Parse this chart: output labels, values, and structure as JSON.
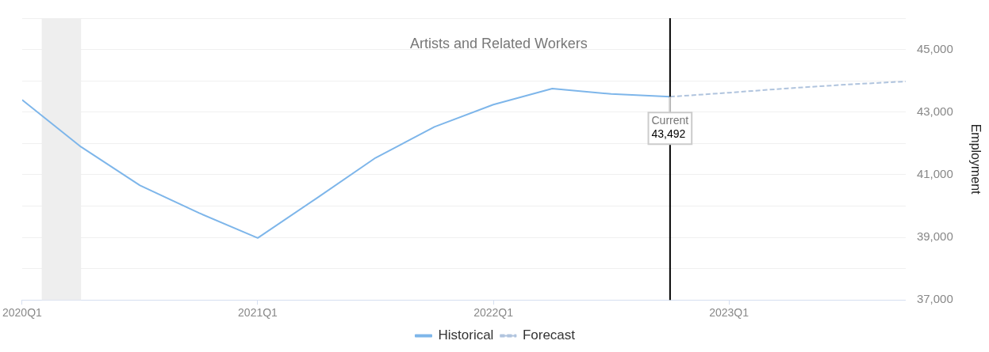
{
  "chart_data": {
    "type": "line",
    "title": "Artists and Related Workers",
    "ylabel": "Employment",
    "x": [
      "2020-01",
      "2020-04",
      "2020-07",
      "2020-10",
      "2021-01",
      "2021-04",
      "2021-07",
      "2021-10",
      "2022-01",
      "2022-04",
      "2022-07",
      "2022-10"
    ],
    "series": [
      {
        "name": "Historical",
        "color": "#7eb6ea",
        "line_style": "solid",
        "values": [
          43390,
          41890,
          40660,
          39780,
          38980,
          40250,
          41540,
          42530,
          43240,
          43750,
          43580,
          43492
        ]
      },
      {
        "name": "Forecast",
        "color": "#b0c4de",
        "line_style": "dashed",
        "x": [
          "2022-10",
          "2023-01",
          "2023-04",
          "2023-07",
          "2023-10"
        ],
        "values": [
          43492,
          43620,
          43760,
          43880,
          43980
        ]
      }
    ],
    "xlim": [
      "2020-01",
      "2023-10"
    ],
    "xticks": [
      {
        "value": "2020-01",
        "label": "2020Q1"
      },
      {
        "value": "2021-01",
        "label": "2021Q1"
      },
      {
        "value": "2022-01",
        "label": "2022Q1"
      },
      {
        "value": "2023-01",
        "label": "2023Q1"
      }
    ],
    "ylim": [
      37000,
      46000
    ],
    "yticks": [
      {
        "value": 37000,
        "label": "37,000"
      },
      {
        "value": 38000,
        "label": null
      },
      {
        "value": 39000,
        "label": "39,000"
      },
      {
        "value": 40000,
        "label": null
      },
      {
        "value": 41000,
        "label": "41,000"
      },
      {
        "value": 42000,
        "label": null
      },
      {
        "value": 43000,
        "label": "43,000"
      },
      {
        "value": 44000,
        "label": null
      },
      {
        "value": 45000,
        "label": "45,000"
      },
      {
        "value": 46000,
        "label": null
      }
    ],
    "bands": [
      {
        "axis": "x",
        "from": "2020-02",
        "to": "2020-04",
        "color": "#eeeeee"
      }
    ],
    "ref_lines": [
      {
        "axis": "x",
        "value": "2022-10",
        "color": "#000000"
      }
    ],
    "annotations": [
      {
        "text": "Current\n43,492",
        "x": "2022-10",
        "y": 43492
      }
    ],
    "grid": "y",
    "legend": "bottom",
    "marker": "none"
  }
}
